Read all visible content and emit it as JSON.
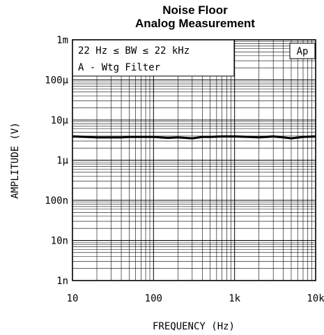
{
  "chart_data": {
    "type": "line",
    "title": [
      "Noise Floor",
      "Analog Measurement"
    ],
    "xlabel": "FREQUENCY (Hz)",
    "ylabel": "AMPLITUDE (V)",
    "x_scale": "log",
    "y_scale": "log",
    "xlim": [
      10,
      10000
    ],
    "ylim": [
      1e-09,
      0.001
    ],
    "grid": true,
    "x_ticks": [
      {
        "value": 10,
        "label": "10"
      },
      {
        "value": 100,
        "label": "100"
      },
      {
        "value": 1000,
        "label": "1k"
      },
      {
        "value": 10000,
        "label": "10k"
      }
    ],
    "y_ticks": [
      {
        "value": 0.001,
        "label": "1m"
      },
      {
        "value": 0.0001,
        "label": "100μ"
      },
      {
        "value": 1e-05,
        "label": "10μ"
      },
      {
        "value": 1e-06,
        "label": "1μ"
      },
      {
        "value": 1e-07,
        "label": "100n"
      },
      {
        "value": 1e-08,
        "label": "10n"
      },
      {
        "value": 1e-09,
        "label": "1n"
      }
    ],
    "annotations": {
      "bandwidth": "22 Hz ≤ BW ≤ 22 kHz",
      "filter": "A - Wtg Filter",
      "badge": "Ap"
    },
    "series": [
      {
        "x": [
          10,
          15,
          20,
          30,
          40,
          50,
          70,
          100,
          150,
          200,
          300,
          400,
          500,
          700,
          1000,
          1500,
          2000,
          3000,
          4000,
          5000,
          7000,
          10000
        ],
        "y": [
          3.9e-06,
          3.8e-06,
          3.7e-06,
          3.7e-06,
          3.7e-06,
          3.8e-06,
          3.8e-06,
          3.8e-06,
          3.6e-06,
          3.7e-06,
          3.5e-06,
          3.8e-06,
          3.8e-06,
          3.9e-06,
          3.9e-06,
          3.8e-06,
          3.7e-06,
          3.9e-06,
          3.7e-06,
          3.5e-06,
          3.8e-06,
          3.9e-06
        ]
      }
    ]
  }
}
